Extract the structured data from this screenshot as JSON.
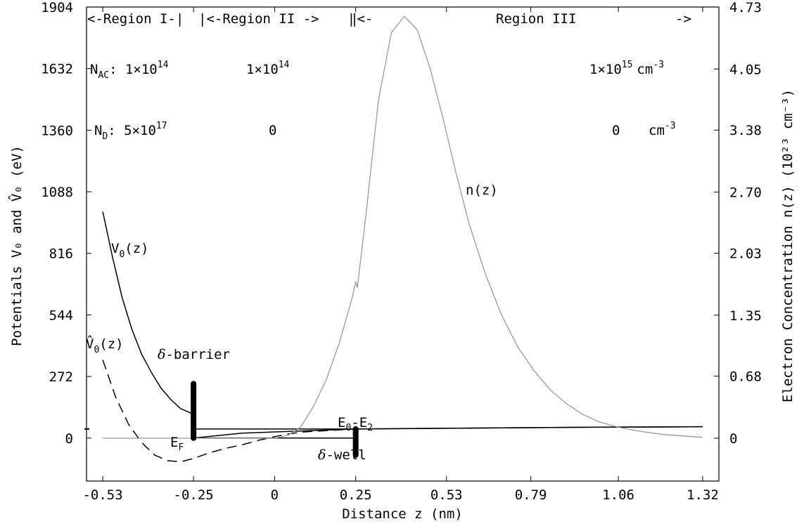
{
  "chart_data": {
    "type": "line",
    "xlabel": "Distance z (nm)",
    "ylabel_left": "Potentials V₀ and V̂₀ (eV)",
    "ylabel_right": "Electron Concentration n(z) (10²³ cm⁻³)",
    "xlim": [
      -0.58,
      1.37
    ],
    "ylim_left": [
      -190,
      1904
    ],
    "ylim_right": [
      -0.47,
      4.73
    ],
    "x_ticks": [
      "-0.53",
      "-0.25",
      "0",
      "0.25",
      "0.53",
      "0.79",
      "1.06",
      "1.32"
    ],
    "x_tick_values": [
      -0.53,
      -0.25,
      0,
      0.25,
      0.53,
      0.79,
      1.06,
      1.32
    ],
    "y_left_ticks": [
      "0",
      "272",
      "544",
      "816",
      "1088",
      "1360",
      "1632",
      "1904"
    ],
    "y_left_tick_values": [
      0,
      272,
      544,
      816,
      1088,
      1360,
      1632,
      1904
    ],
    "y_right_ticks": [
      "0",
      "0.68",
      "1.35",
      "2.03",
      "2.70",
      "3.38",
      "4.05",
      "4.73"
    ],
    "y_right_tick_values": [
      0,
      0.68,
      1.35,
      2.03,
      2.7,
      3.38,
      4.05,
      4.73
    ],
    "grid": false,
    "series": [
      {
        "name": "V0(z)",
        "axis": "left",
        "style": "solid",
        "color": "#000000",
        "x": [
          -0.53,
          -0.5,
          -0.47,
          -0.44,
          -0.41,
          -0.38,
          -0.35,
          -0.32,
          -0.29,
          -0.25,
          -0.25,
          -0.1,
          0.1,
          0.25,
          0.4,
          0.6,
          0.8,
          1.0,
          1.2,
          1.32
        ],
        "y": [
          1000,
          800,
          620,
          480,
          370,
          290,
          220,
          170,
          130,
          105,
          0,
          22,
          32,
          40,
          42,
          44,
          46,
          48,
          49,
          50
        ]
      },
      {
        "name": "V̂0(z)",
        "axis": "left",
        "style": "dashed",
        "color": "#000000",
        "x": [
          -0.53,
          -0.49,
          -0.45,
          -0.41,
          -0.37,
          -0.33,
          -0.29,
          -0.25,
          -0.2,
          -0.15,
          -0.1,
          -0.05,
          0,
          0.05,
          0.1,
          0.2,
          0.25
        ],
        "y": [
          345,
          180,
          60,
          -20,
          -75,
          -100,
          -105,
          -90,
          -65,
          -45,
          -30,
          -10,
          6,
          20,
          28,
          36,
          40
        ]
      },
      {
        "name": "E0-E2",
        "axis": "left",
        "style": "solid",
        "color": "#000000",
        "x": [
          -0.25,
          0.25,
          0.6,
          1.0,
          1.32
        ],
        "y": [
          40,
          40,
          44,
          48,
          50
        ]
      },
      {
        "name": "EF",
        "axis": "left",
        "style": "solid",
        "color": "#000000",
        "x": [
          -0.25,
          0.25
        ],
        "y": [
          0,
          0
        ]
      },
      {
        "name": "n(z)",
        "axis": "right",
        "style": "solid",
        "color": "#999999",
        "x": [
          -0.53,
          0.0,
          0.04,
          0.08,
          0.12,
          0.16,
          0.2,
          0.24,
          0.25,
          0.255,
          0.28,
          0.32,
          0.36,
          0.4,
          0.44,
          0.48,
          0.52,
          0.56,
          0.6,
          0.65,
          0.7,
          0.75,
          0.8,
          0.85,
          0.9,
          0.95,
          1.0,
          1.06,
          1.12,
          1.2,
          1.32
        ],
        "y": [
          0,
          0,
          0.03,
          0.12,
          0.35,
          0.65,
          1.05,
          1.55,
          1.72,
          1.65,
          2.4,
          3.7,
          4.45,
          4.63,
          4.48,
          4.05,
          3.5,
          2.9,
          2.35,
          1.8,
          1.35,
          1.0,
          0.74,
          0.53,
          0.38,
          0.26,
          0.18,
          0.12,
          0.08,
          0.04,
          0.01
        ]
      }
    ],
    "markers": [
      {
        "name": "delta-barrier",
        "x": -0.25,
        "y_from": 0,
        "y_to": 240
      },
      {
        "name": "delta-well",
        "x": 0.25,
        "y_from": -75,
        "y_to": 40
      }
    ],
    "annotations": {
      "region_i": "<-Region I-|",
      "region_ii": "|<-Region II ->",
      "region_sep": "‖<-",
      "region_iii": "Region III",
      "region_iii_arrow": "->",
      "nac_label": "N",
      "nac_sub": "AC",
      "nac_colon": ": 1×10",
      "nac_1_exp": "14",
      "nac_2_base": "1×10",
      "nac_2_exp": "14",
      "nac_3_base": "1×10",
      "nac_3_exp": "15",
      "unit_cm": "cm",
      "unit_exp": "-3",
      "nd_label": "N",
      "nd_sub": "D",
      "nd_colon": ": 5×10",
      "nd_1_exp": "17",
      "nd_2": "0",
      "nd_3": "0",
      "v0_label": "V",
      "v0_sub": "0",
      "v0_arg": "(z)",
      "v0hat_label": "V̂",
      "v0hat_sub": "0",
      "v0hat_arg": "(z)",
      "delta_sym": "δ",
      "barrier": "-barrier",
      "well": "-well",
      "e0_label": "E",
      "e0_sub": "0",
      "e2_dash": "-E",
      "e2_sub": "2",
      "ef_label": "E",
      "ef_sub": "F",
      "nz_label": "n(z)"
    }
  }
}
